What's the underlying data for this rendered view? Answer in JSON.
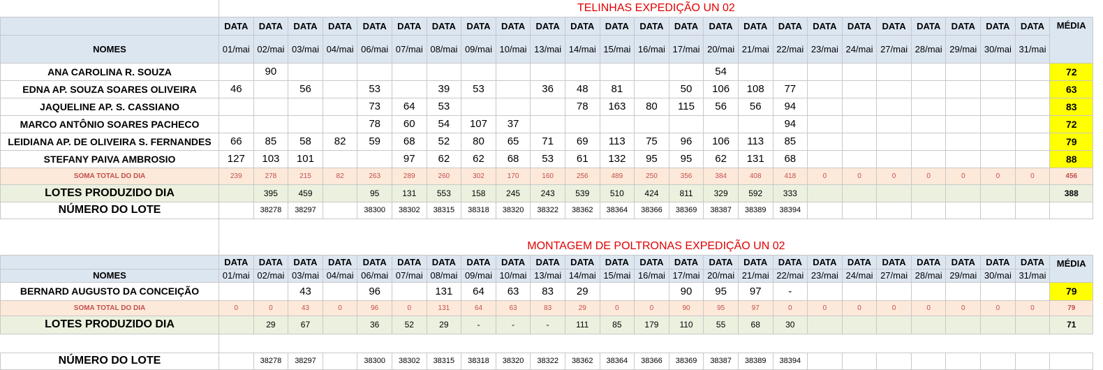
{
  "section1": {
    "title": "TELINHAS EXPEDIÇÃO UN 02",
    "header_label": "DATA",
    "avg_label": "MÉDIA",
    "names_label": "NOMES",
    "dates": [
      "01/mai",
      "02/mai",
      "03/mai",
      "04/mai",
      "06/mai",
      "07/mai",
      "08/mai",
      "09/mai",
      "10/mai",
      "13/mai",
      "14/mai",
      "15/mai",
      "16/mai",
      "17/mai",
      "20/mai",
      "21/mai",
      "22/mai",
      "23/mai",
      "24/mai",
      "27/mai",
      "28/mai",
      "29/mai",
      "30/mai",
      "31/mai"
    ],
    "rows": [
      {
        "name": "ANA CAROLINA R. SOUZA",
        "values": [
          "",
          "90",
          "",
          "",
          "",
          "",
          "",
          "",
          "",
          "",
          "",
          "",
          "",
          "",
          "54",
          "",
          "",
          "",
          "",
          "",
          "",
          "",
          "",
          ""
        ],
        "avg": "72"
      },
      {
        "name": "EDNA AP. SOUZA SOARES OLIVEIRA",
        "values": [
          "46",
          "",
          "56",
          "",
          "53",
          "",
          "39",
          "53",
          "",
          "36",
          "48",
          "81",
          "",
          "50",
          "106",
          "108",
          "77",
          "",
          "",
          "",
          "",
          "",
          "",
          ""
        ],
        "avg": "63"
      },
      {
        "name": "JAQUELINE AP.  S. CASSIANO",
        "values": [
          "",
          "",
          "",
          "",
          "73",
          "64",
          "53",
          "",
          "",
          "",
          "78",
          "163",
          "80",
          "115",
          "56",
          "56",
          "94",
          "",
          "",
          "",
          "",
          "",
          "",
          ""
        ],
        "avg": "83"
      },
      {
        "name": "MARCO ANTÔNIO SOARES PACHECO",
        "values": [
          "",
          "",
          "",
          "",
          "78",
          "60",
          "54",
          "107",
          "37",
          "",
          "",
          "",
          "",
          "",
          "",
          "",
          "94",
          "",
          "",
          "",
          "",
          "",
          "",
          ""
        ],
        "avg": "72"
      },
      {
        "name": "LEIDIANA AP. DE OLIVEIRA S. FERNANDES",
        "values": [
          "66",
          "85",
          "58",
          "82",
          "59",
          "68",
          "52",
          "80",
          "65",
          "71",
          "69",
          "113",
          "75",
          "96",
          "106",
          "113",
          "85",
          "",
          "",
          "",
          "",
          "",
          "",
          ""
        ],
        "avg": "79"
      },
      {
        "name": "STEFANY PAIVA AMBROSIO",
        "values": [
          "127",
          "103",
          "101",
          "",
          "",
          "97",
          "62",
          "62",
          "68",
          "53",
          "61",
          "132",
          "95",
          "95",
          "62",
          "131",
          "68",
          "",
          "",
          "",
          "",
          "",
          "",
          ""
        ],
        "avg": "88"
      }
    ],
    "soma": {
      "label": "SOMA TOTAL DO DIA",
      "values": [
        "239",
        "278",
        "215",
        "82",
        "263",
        "289",
        "260",
        "302",
        "170",
        "160",
        "256",
        "489",
        "250",
        "356",
        "384",
        "408",
        "418",
        "0",
        "0",
        "0",
        "0",
        "0",
        "0",
        "0"
      ],
      "avg": "456"
    },
    "lotes": {
      "label": "LOTES PRODUZIDO DIA",
      "values": [
        "",
        "395",
        "459",
        "",
        "95",
        "131",
        "553",
        "158",
        "245",
        "243",
        "539",
        "510",
        "424",
        "811",
        "329",
        "592",
        "333",
        "",
        "",
        "",
        "",
        "",
        "",
        ""
      ],
      "avg": "388"
    },
    "lote": {
      "label": "NÚMERO DO LOTE",
      "values": [
        "",
        "38278",
        "38297",
        "",
        "38300",
        "38302",
        "38315",
        "38318",
        "38320",
        "38322",
        "38362",
        "38364",
        "38366",
        "38369",
        "38387",
        "38389",
        "38394",
        "",
        "",
        "",
        "",
        "",
        "",
        ""
      ]
    }
  },
  "section2": {
    "title": "MONTAGEM DE POLTRONAS EXPEDIÇÃO UN 02",
    "header_label": "DATA",
    "avg_label": "MÉDIA",
    "names_label": "NOMES",
    "dates": [
      "01/mai",
      "02/mai",
      "03/mai",
      "04/mai",
      "06/mai",
      "07/mai",
      "08/mai",
      "09/mai",
      "10/mai",
      "13/mai",
      "14/mai",
      "15/mai",
      "16/mai",
      "17/mai",
      "20/mai",
      "21/mai",
      "22/mai",
      "23/mai",
      "24/mai",
      "27/mai",
      "28/mai",
      "29/mai",
      "30/mai",
      "31/mai"
    ],
    "rows": [
      {
        "name": "BERNARD AUGUSTO DA CONCEIÇÃO",
        "values": [
          "",
          "",
          "43",
          "",
          "96",
          "",
          "131",
          "64",
          "63",
          "83",
          "29",
          "",
          "",
          "90",
          "95",
          "97",
          "-",
          "",
          "",
          "",
          "",
          "",
          "",
          ""
        ],
        "avg": "79"
      }
    ],
    "soma": {
      "label": "SOMA TOTAL DO DIA",
      "values": [
        "0",
        "0",
        "43",
        "0",
        "96",
        "0",
        "131",
        "64",
        "63",
        "83",
        "29",
        "0",
        "0",
        "90",
        "95",
        "97",
        "0",
        "0",
        "0",
        "0",
        "0",
        "0",
        "0",
        "0"
      ],
      "avg": "79"
    },
    "lotes": {
      "label": "LOTES PRODUZIDO DIA",
      "values": [
        "",
        "29",
        "67",
        "",
        "36",
        "52",
        "29",
        "-",
        "-",
        "-",
        "111",
        "85",
        "179",
        "110",
        "55",
        "68",
        "30",
        "",
        "",
        "",
        "",
        "",
        "",
        ""
      ],
      "avg": "71"
    },
    "lote": {
      "label": "NÚMERO DO LOTE",
      "values": [
        "",
        "38278",
        "38297",
        "",
        "38300",
        "38302",
        "38315",
        "38318",
        "38320",
        "38322",
        "38362",
        "38364",
        "38366",
        "38369",
        "38387",
        "38389",
        "38394",
        "",
        "",
        "",
        "",
        "",
        "",
        ""
      ]
    }
  }
}
